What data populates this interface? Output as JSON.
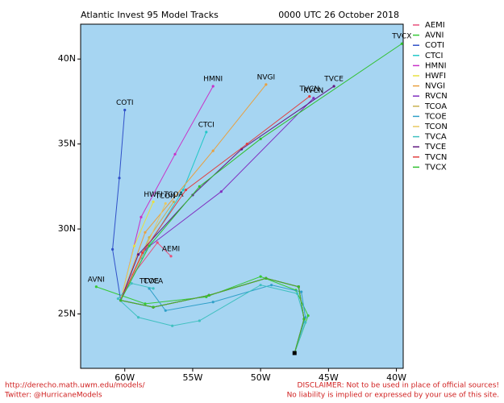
{
  "chart_data": {
    "type": "line",
    "title": "Atlantic Invest 95 Model Tracks",
    "subtitle": "0000 UTC 26 October 2018",
    "xlim": [
      -63.25,
      -39.5
    ],
    "ylim": [
      21.8,
      42.05
    ],
    "xticks": [
      {
        "value": -60,
        "label": "60W"
      },
      {
        "value": -55,
        "label": "55W"
      },
      {
        "value": -50,
        "label": "50W"
      },
      {
        "value": -45,
        "label": "45W"
      },
      {
        "value": -40,
        "label": "40W"
      }
    ],
    "yticks": [
      {
        "value": 25,
        "label": "25N"
      },
      {
        "value": 30,
        "label": "30N"
      },
      {
        "value": 35,
        "label": "35N"
      },
      {
        "value": 40,
        "label": "40N"
      }
    ],
    "background": "#a6d5f2",
    "series": [
      {
        "name": "AEMI",
        "color": "#e8507a",
        "lon": [
          -47.5,
          -46.8,
          -47.2,
          -49.6,
          -53.8,
          -57.9,
          -60.3,
          -59.4,
          -57.6,
          -56.6
        ],
        "lat": [
          22.7,
          24.7,
          26.6,
          27.1,
          26.1,
          25.4,
          25.8,
          27.3,
          29.2,
          28.4
        ]
      },
      {
        "name": "AVNI",
        "color": "#36c936",
        "lon": [
          -47.5,
          -46.5,
          -47.4,
          -50.0,
          -54.0,
          -58.5,
          -62.1
        ],
        "lat": [
          22.7,
          24.9,
          26.4,
          27.2,
          26.0,
          25.6,
          26.6
        ]
      },
      {
        "name": "COTI",
        "color": "#3050c8",
        "lon": [
          -47.5,
          -46.8,
          -47.2,
          -49.6,
          -53.8,
          -57.9,
          -60.3,
          -60.9,
          -60.4,
          -60.0
        ],
        "lat": [
          22.7,
          24.7,
          26.6,
          27.1,
          26.1,
          25.4,
          25.8,
          28.8,
          33.0,
          37.0
        ]
      },
      {
        "name": "CTCI",
        "color": "#22c8c8",
        "lon": [
          -47.5,
          -46.8,
          -47.2,
          -49.6,
          -53.8,
          -57.9,
          -60.3,
          -58.8,
          -55.7,
          -54.0
        ],
        "lat": [
          22.7,
          24.7,
          26.6,
          27.1,
          26.1,
          25.4,
          25.8,
          28.3,
          32.3,
          35.7
        ]
      },
      {
        "name": "HMNI",
        "color": "#c832c8",
        "lon": [
          -47.5,
          -46.8,
          -47.2,
          -49.6,
          -53.8,
          -57.9,
          -60.3,
          -58.8,
          -56.3,
          -53.5
        ],
        "lat": [
          22.7,
          24.7,
          26.6,
          27.1,
          26.1,
          25.4,
          25.8,
          30.7,
          34.4,
          38.4
        ]
      },
      {
        "name": "HWFI",
        "color": "#e8e040",
        "lon": [
          -47.5,
          -46.8,
          -47.2,
          -49.6,
          -53.8,
          -57.9,
          -60.3,
          -59.3,
          -57.9
        ],
        "lat": [
          22.7,
          24.7,
          26.6,
          27.1,
          26.1,
          25.4,
          25.8,
          29.0,
          31.6
        ]
      },
      {
        "name": "NVGI",
        "color": "#e8a040",
        "lon": [
          -47.5,
          -46.8,
          -47.2,
          -49.6,
          -53.8,
          -57.9,
          -60.3,
          -58.5,
          -53.5,
          -49.6
        ],
        "lat": [
          22.7,
          24.7,
          26.6,
          27.1,
          26.1,
          25.4,
          25.8,
          29.8,
          34.6,
          38.5
        ]
      },
      {
        "name": "RVCN",
        "color": "#8030c0",
        "lon": [
          -47.5,
          -46.8,
          -47.2,
          -49.6,
          -53.8,
          -57.9,
          -60.3,
          -58.5,
          -52.9,
          -46.1
        ],
        "lat": [
          22.7,
          24.7,
          26.6,
          27.1,
          26.1,
          25.4,
          25.8,
          28.8,
          32.2,
          37.7
        ]
      },
      {
        "name": "TCOA",
        "color": "#c8b050",
        "lon": [
          -47.5,
          -46.8,
          -47.2,
          -49.6,
          -53.8,
          -57.9,
          -60.3,
          -58.2,
          -56.4
        ],
        "lat": [
          22.7,
          24.7,
          26.6,
          27.1,
          26.1,
          25.4,
          25.8,
          29.5,
          31.6
        ]
      },
      {
        "name": "TCOE",
        "color": "#30a0c8",
        "lon": [
          -47.5,
          -46.7,
          -47.0,
          -49.2,
          -53.5,
          -57.0,
          -58.2
        ],
        "lat": [
          22.7,
          24.8,
          26.3,
          26.7,
          25.7,
          25.2,
          26.5
        ]
      },
      {
        "name": "TCON",
        "color": "#e8c860",
        "lon": [
          -47.5,
          -46.8,
          -47.2,
          -49.6,
          -53.8,
          -57.9,
          -60.3,
          -58.4,
          -57.0
        ],
        "lat": [
          22.7,
          24.7,
          26.6,
          27.1,
          26.1,
          25.4,
          25.8,
          29.0,
          31.5
        ]
      },
      {
        "name": "TVCA",
        "color": "#40c0c0",
        "lon": [
          -47.5,
          -46.7,
          -47.3,
          -50.0,
          -54.5,
          -56.5,
          -59.0,
          -60.5,
          -59.5,
          -57.9
        ],
        "lat": [
          22.7,
          24.5,
          26.2,
          26.7,
          24.6,
          24.3,
          24.8,
          25.9,
          26.8,
          26.5
        ]
      },
      {
        "name": "TVCE",
        "color": "#601880",
        "lon": [
          -47.5,
          -46.8,
          -47.2,
          -49.6,
          -53.8,
          -57.9,
          -60.3,
          -59.0,
          -55.0,
          -51.4,
          -44.6
        ],
        "lat": [
          22.7,
          24.7,
          26.6,
          27.1,
          26.1,
          25.4,
          25.8,
          28.5,
          32.0,
          34.7,
          38.4
        ]
      },
      {
        "name": "TVCN",
        "color": "#e04040",
        "lon": [
          -47.5,
          -46.8,
          -47.2,
          -49.6,
          -53.8,
          -57.9,
          -60.3,
          -58.7,
          -55.5,
          -51.0,
          -46.4
        ],
        "lat": [
          22.7,
          24.7,
          26.6,
          27.1,
          26.1,
          25.4,
          25.8,
          28.6,
          32.3,
          35.0,
          37.8
        ]
      },
      {
        "name": "TVCX",
        "color": "#30c030",
        "lon": [
          -47.5,
          -46.8,
          -47.2,
          -49.6,
          -53.8,
          -57.9,
          -60.3,
          -58.2,
          -54.5,
          -50.0,
          -39.6
        ],
        "lat": [
          22.7,
          24.7,
          26.6,
          27.1,
          26.1,
          25.4,
          25.8,
          29.0,
          32.5,
          35.3,
          40.9
        ]
      }
    ]
  },
  "footer": {
    "url": "http://derecho.math.uwm.edu/models/",
    "twitter": "Twitter: @HurricaneModels",
    "disclaimer": "DISCLAIMER: Not to be used in place of official sources!",
    "liability": "No liability is implied or expressed by your use of this site."
  }
}
